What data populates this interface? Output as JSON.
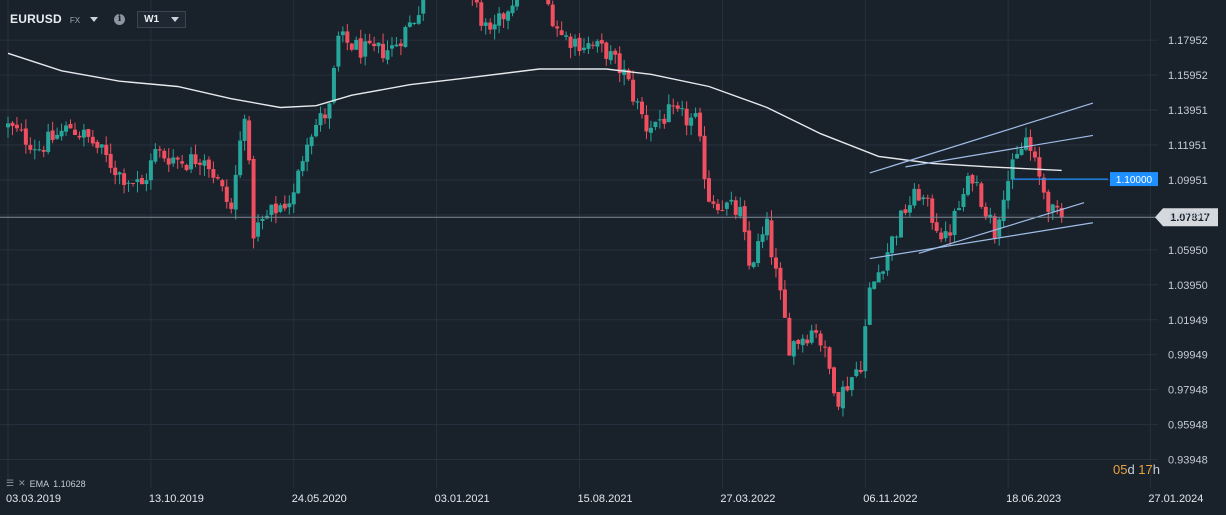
{
  "header": {
    "symbol": "EURUSD",
    "market": "FX",
    "timeframe": "W1",
    "info_icon": "info-icon",
    "dropdown_icon": "chevron-down-icon"
  },
  "indicator": {
    "name": "EMA",
    "value": "1.10628",
    "icons": [
      "list-icon",
      "close-icon"
    ]
  },
  "countdown": {
    "days": "05",
    "d_unit": "d",
    "hours": "17",
    "h_unit": "h"
  },
  "colors": {
    "background": "#19212b",
    "up": "#26a69a",
    "down": "#ef4f5f",
    "ema": "#e6e9ec",
    "trendline": "#9fbde6",
    "level_line": "#1e90ff",
    "price_line": "#7f8a96"
  },
  "chart_data": {
    "type": "candlestick",
    "symbol": "EURUSD",
    "interval": "W1",
    "x_ticks": [
      "03.03.2019",
      "13.10.2019",
      "24.05.2020",
      "03.01.2021",
      "15.08.2021",
      "27.03.2022",
      "06.11.2022",
      "18.06.2023",
      "27.01.2024"
    ],
    "y_ticks": [
      "1.17952",
      "1.15952",
      "1.13951",
      "1.11951",
      "1.09951",
      "1.07950",
      "1.05950",
      "1.03950",
      "1.01949",
      "0.99949",
      "0.97948",
      "0.95948",
      "0.93948"
    ],
    "ylim": [
      0.9335,
      1.2025
    ],
    "last_price": "1.07817",
    "level_label": "1.10000",
    "grid": true,
    "close_path": [
      [
        "2019-03-03",
        1.13
      ],
      [
        "2019-04-21",
        1.118
      ],
      [
        "2019-06-09",
        1.13
      ],
      [
        "2019-07-14",
        1.121
      ],
      [
        "2019-08-25",
        1.103
      ],
      [
        "2019-09-29",
        1.096
      ],
      [
        "2019-10-20",
        1.115
      ],
      [
        "2019-12-08",
        1.11
      ],
      [
        "2020-01-05",
        1.114
      ],
      [
        "2020-02-16",
        1.082
      ],
      [
        "2020-03-08",
        1.14
      ],
      [
        "2020-03-22",
        1.07
      ],
      [
        "2020-04-26",
        1.083
      ],
      [
        "2020-05-24",
        1.09
      ],
      [
        "2020-06-14",
        1.125
      ],
      [
        "2020-07-19",
        1.14
      ],
      [
        "2020-08-02",
        1.18
      ],
      [
        "2020-09-20",
        1.172
      ],
      [
        "2020-10-25",
        1.175
      ],
      [
        "2020-11-29",
        1.192
      ],
      [
        "2021-01-03",
        1.225
      ],
      [
        "2021-02-21",
        1.21
      ],
      [
        "2021-03-28",
        1.18
      ],
      [
        "2021-05-30",
        1.222
      ],
      [
        "2021-07-18",
        1.182
      ],
      [
        "2021-09-26",
        1.173
      ],
      [
        "2021-10-24",
        1.16
      ],
      [
        "2021-11-28",
        1.13
      ],
      [
        "2022-01-02",
        1.137
      ],
      [
        "2022-02-13",
        1.133
      ],
      [
        "2022-03-06",
        1.09
      ],
      [
        "2022-04-24",
        1.08
      ],
      [
        "2022-05-08",
        1.05
      ],
      [
        "2022-06-05",
        1.072
      ],
      [
        "2022-07-10",
        1.005
      ],
      [
        "2022-08-21",
        1.015
      ],
      [
        "2022-09-25",
        0.975
      ],
      [
        "2022-10-30",
        0.995
      ],
      [
        "2022-11-13",
        1.035
      ],
      [
        "2023-01-08",
        1.083
      ],
      [
        "2023-01-29",
        1.092
      ],
      [
        "2023-03-12",
        1.065
      ],
      [
        "2023-04-23",
        1.103
      ],
      [
        "2023-05-28",
        1.07
      ],
      [
        "2023-06-11",
        1.094
      ],
      [
        "2023-07-16",
        1.123
      ],
      [
        "2023-08-06",
        1.1
      ],
      [
        "2023-08-27",
        1.08
      ],
      [
        "2023-09-10",
        1.077
      ]
    ],
    "ema_path": [
      [
        "2019-03-03",
        1.172
      ],
      [
        "2019-05-26",
        1.162
      ],
      [
        "2019-08-25",
        1.156
      ],
      [
        "2019-11-24",
        1.153
      ],
      [
        "2020-02-16",
        1.146
      ],
      [
        "2020-05-03",
        1.141
      ],
      [
        "2020-06-28",
        1.142
      ],
      [
        "2020-08-23",
        1.148
      ],
      [
        "2020-11-22",
        1.154
      ],
      [
        "2021-02-21",
        1.158
      ],
      [
        "2021-06-13",
        1.163
      ],
      [
        "2021-09-26",
        1.163
      ],
      [
        "2021-12-05",
        1.16
      ],
      [
        "2022-03-06",
        1.153
      ],
      [
        "2022-06-05",
        1.141
      ],
      [
        "2022-08-28",
        1.126
      ],
      [
        "2022-11-27",
        1.113
      ],
      [
        "2023-02-19",
        1.109
      ],
      [
        "2023-05-21",
        1.107
      ],
      [
        "2023-09-10",
        1.105
      ]
    ],
    "trendlines": [
      [
        [
          "2022-11-13",
          1.1035
        ],
        [
          "2023-10-29",
          1.1435
        ]
      ],
      [
        [
          "2023-01-08",
          1.107
        ],
        [
          "2023-10-29",
          1.125
        ]
      ],
      [
        [
          "2022-11-13",
          1.0545
        ],
        [
          "2023-10-29",
          1.075
        ]
      ],
      [
        [
          "2023-01-29",
          1.0575
        ],
        [
          "2023-10-15",
          1.0865
        ]
      ]
    ],
    "horizontal_level": {
      "value": 1.1,
      "from": "2023-06-25"
    }
  }
}
